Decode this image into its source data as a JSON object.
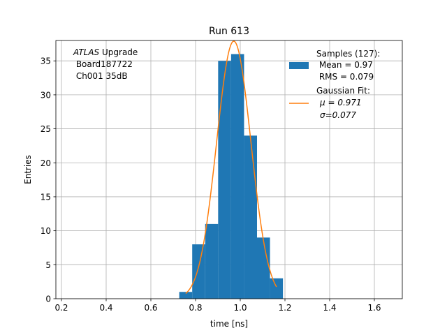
{
  "chart_data": {
    "type": "bar",
    "title": "Run 613",
    "xlabel": "time [ns]",
    "ylabel": "Entries",
    "xlim": [
      0.175,
      1.725
    ],
    "ylim": [
      0,
      38
    ],
    "xticks": [
      0.2,
      0.4,
      0.6,
      0.8,
      1.0,
      1.2,
      1.4,
      1.6
    ],
    "xtick_labels": [
      "0.2",
      "0.4",
      "0.6",
      "0.8",
      "1.0",
      "1.2",
      "1.4",
      "1.6"
    ],
    "yticks": [
      0,
      5,
      10,
      15,
      20,
      25,
      30,
      35
    ],
    "ytick_labels": [
      "0",
      "5",
      "10",
      "15",
      "20",
      "25",
      "30",
      "35"
    ],
    "grid": true,
    "annotation": {
      "italic": "ATLAS",
      "line1_rest": " Upgrade",
      "line2": " Board187722",
      "line3": " Ch001 35dB"
    },
    "histogram": {
      "name": "Samples",
      "color": "#1f77b4",
      "bins": [
        {
          "x0": 0.727,
          "x1": 0.785,
          "count": 1
        },
        {
          "x0": 0.785,
          "x1": 0.843,
          "count": 8
        },
        {
          "x0": 0.843,
          "x1": 0.901,
          "count": 11
        },
        {
          "x0": 0.901,
          "x1": 0.959,
          "count": 35
        },
        {
          "x0": 0.959,
          "x1": 1.017,
          "count": 36
        },
        {
          "x0": 1.017,
          "x1": 1.075,
          "count": 24
        },
        {
          "x0": 1.075,
          "x1": 1.133,
          "count": 9
        },
        {
          "x0": 1.133,
          "x1": 1.191,
          "count": 3
        }
      ]
    },
    "fit": {
      "name": "Gaussian Fit",
      "color": "#ff7f0e",
      "amplitude": 37.9,
      "mu": 0.971,
      "sigma": 0.077,
      "x_range": [
        0.756,
        1.162
      ]
    },
    "legend": {
      "placement": "top-right",
      "samples_lines": [
        "Samples (127):",
        " Mean = 0.97",
        " RMS = 0.079"
      ],
      "fit_lines": [
        "Gaussian Fit:",
        "μ = 0.971",
        "σ=0.077"
      ]
    }
  }
}
